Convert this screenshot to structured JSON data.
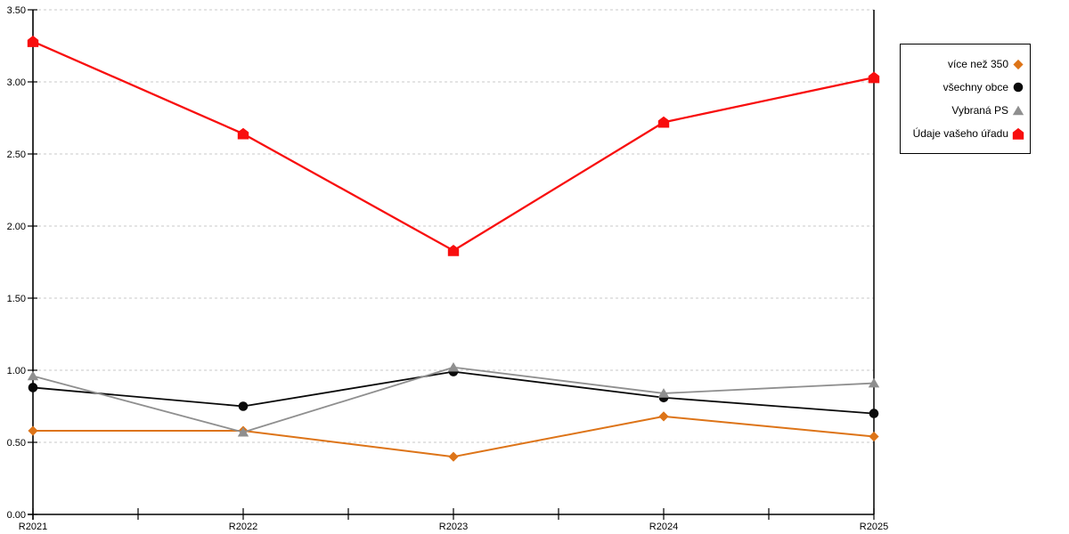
{
  "page": {
    "background": "#FFFFFF"
  },
  "chart_data": {
    "type": "line",
    "title": "",
    "xlabel": "",
    "ylabel": "",
    "categories": [
      "R2021",
      "R2022",
      "R2023",
      "R2024",
      "R2025"
    ],
    "y_tick_labels": [
      "0.00",
      "0.50",
      "1.00",
      "1.50",
      "2.00",
      "2.50",
      "3.00",
      "3.50"
    ],
    "ylim": [
      0,
      3.5
    ],
    "y_tick_step": 0.5,
    "grid": "horizontal dashed",
    "gridline_color": "#C8C8C8",
    "axis_color": "#000000",
    "legend_position": "top-right outside plot",
    "series": [
      {
        "name": "více než 350",
        "color": "#DD7418",
        "marker": "diamond",
        "values": [
          0.58,
          0.58,
          0.4,
          0.68,
          0.54
        ]
      },
      {
        "name": "všechny obce",
        "color": "#0A0A0A",
        "marker": "circle",
        "values": [
          0.88,
          0.75,
          0.99,
          0.81,
          0.7
        ]
      },
      {
        "name": "Vybraná PS",
        "color": "#8F8F8F",
        "marker": "triangle",
        "values": [
          0.96,
          0.57,
          1.02,
          0.84,
          0.91
        ]
      },
      {
        "name": "Údaje vašeho úřadu",
        "color": "#F80E0E",
        "marker": "pentagon",
        "values": [
          3.28,
          2.64,
          1.83,
          2.72,
          3.03
        ]
      }
    ]
  }
}
